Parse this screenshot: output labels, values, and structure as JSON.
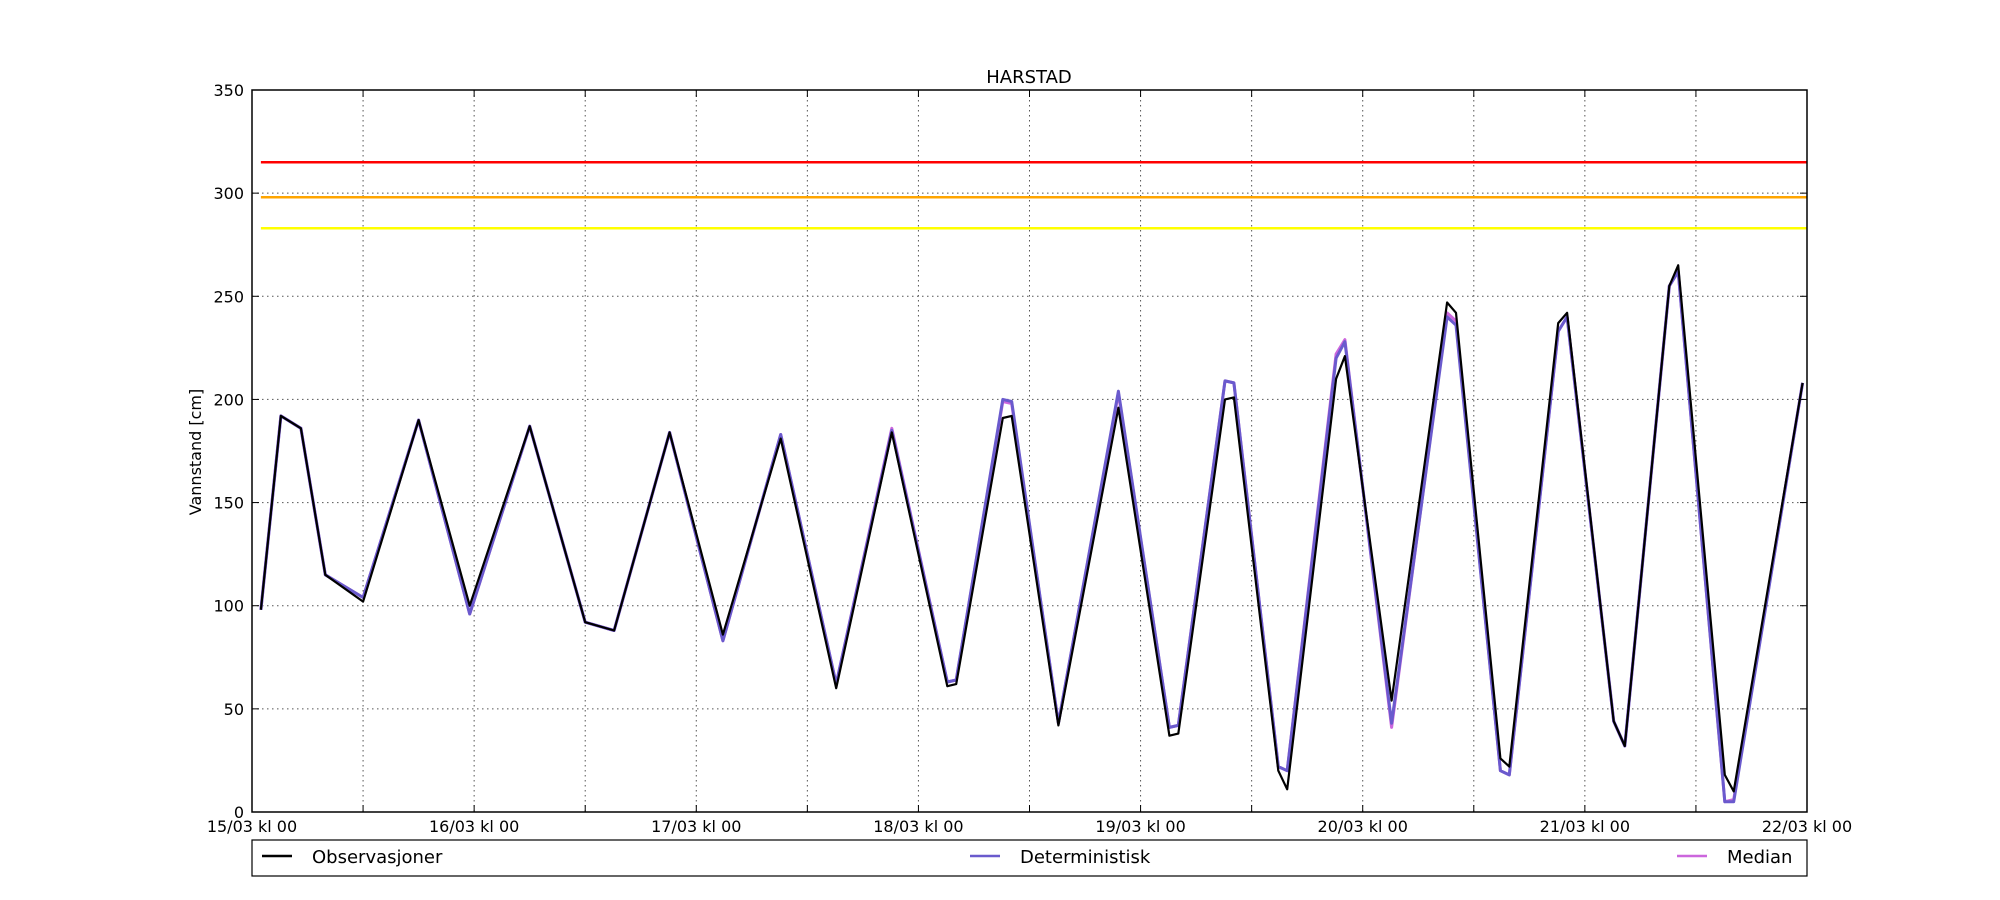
{
  "chart_data": {
    "type": "line",
    "title": "HARSTAD",
    "xlabel": "",
    "ylabel": "Vannstand [cm]",
    "ylim": [
      0,
      350
    ],
    "yticks": [
      0,
      50,
      100,
      150,
      200,
      250,
      300,
      350
    ],
    "xlim": [
      0,
      7
    ],
    "x_unit": "days since 15/03 kl 00",
    "xticks": [
      {
        "x": 0,
        "label": "15/03 kl 00"
      },
      {
        "x": 0.5,
        "label": ""
      },
      {
        "x": 1,
        "label": "16/03 kl 00"
      },
      {
        "x": 1.5,
        "label": ""
      },
      {
        "x": 2,
        "label": "17/03 kl 00"
      },
      {
        "x": 2.5,
        "label": ""
      },
      {
        "x": 3,
        "label": "18/03 kl 00"
      },
      {
        "x": 3.5,
        "label": ""
      },
      {
        "x": 4,
        "label": "19/03 kl 00"
      },
      {
        "x": 4.5,
        "label": ""
      },
      {
        "x": 5,
        "label": "20/03 kl 00"
      },
      {
        "x": 5.5,
        "label": ""
      },
      {
        "x": 6,
        "label": "21/03 kl 00"
      },
      {
        "x": 6.5,
        "label": ""
      },
      {
        "x": 7,
        "label": "22/03 kl 00"
      }
    ],
    "grid": true,
    "legend_position": "bottom",
    "thresholds": [
      {
        "value": 315,
        "color": "#ff0000"
      },
      {
        "value": 298,
        "color": "#ffa500"
      },
      {
        "value": 283,
        "color": "#ffff00"
      }
    ],
    "series": [
      {
        "name": "Observasjoner",
        "color": "#000000",
        "points": [
          [
            0.04,
            98
          ],
          [
            0.13,
            192
          ],
          [
            0.22,
            186
          ],
          [
            0.33,
            115
          ],
          [
            0.5,
            102
          ],
          [
            0.75,
            190
          ],
          [
            0.98,
            100
          ],
          [
            1.25,
            187
          ],
          [
            1.5,
            92
          ],
          [
            1.63,
            88
          ],
          [
            1.88,
            184
          ],
          [
            2.12,
            86
          ],
          [
            2.38,
            181
          ],
          [
            2.63,
            60
          ],
          [
            2.88,
            184
          ],
          [
            3.13,
            61
          ],
          [
            3.17,
            62
          ],
          [
            3.38,
            191
          ],
          [
            3.42,
            192
          ],
          [
            3.63,
            42
          ],
          [
            3.9,
            196
          ],
          [
            4.13,
            37
          ],
          [
            4.17,
            38
          ],
          [
            4.38,
            200
          ],
          [
            4.42,
            201
          ],
          [
            4.62,
            20
          ],
          [
            4.66,
            11
          ],
          [
            4.88,
            210
          ],
          [
            4.92,
            221
          ],
          [
            5.13,
            54
          ],
          [
            5.38,
            247
          ],
          [
            5.42,
            242
          ],
          [
            5.62,
            26
          ],
          [
            5.66,
            22
          ],
          [
            5.88,
            237
          ],
          [
            5.92,
            242
          ],
          [
            6.13,
            44
          ],
          [
            6.18,
            32
          ],
          [
            6.38,
            255
          ],
          [
            6.42,
            265
          ],
          [
            6.63,
            18
          ],
          [
            6.67,
            10
          ],
          [
            6.98,
            208
          ]
        ]
      },
      {
        "name": "Deterministisk",
        "color": "#6a5acd",
        "points": [
          [
            0.04,
            98
          ],
          [
            0.13,
            192
          ],
          [
            0.22,
            186
          ],
          [
            0.33,
            115
          ],
          [
            0.5,
            104
          ],
          [
            0.75,
            190
          ],
          [
            0.98,
            96
          ],
          [
            1.25,
            187
          ],
          [
            1.5,
            92
          ],
          [
            1.63,
            88
          ],
          [
            1.88,
            184
          ],
          [
            2.12,
            83
          ],
          [
            2.38,
            183
          ],
          [
            2.63,
            62
          ],
          [
            2.88,
            185
          ],
          [
            3.13,
            63
          ],
          [
            3.17,
            64
          ],
          [
            3.38,
            200
          ],
          [
            3.42,
            199
          ],
          [
            3.63,
            43
          ],
          [
            3.9,
            204
          ],
          [
            4.13,
            41
          ],
          [
            4.17,
            42
          ],
          [
            4.38,
            209
          ],
          [
            4.42,
            208
          ],
          [
            4.62,
            22
          ],
          [
            4.66,
            20
          ],
          [
            4.88,
            220
          ],
          [
            4.92,
            228
          ],
          [
            5.13,
            43
          ],
          [
            5.38,
            240
          ],
          [
            5.42,
            236
          ],
          [
            5.62,
            20
          ],
          [
            5.66,
            18
          ],
          [
            5.88,
            233
          ],
          [
            5.92,
            240
          ],
          [
            6.13,
            44
          ],
          [
            6.18,
            32
          ],
          [
            6.38,
            255
          ],
          [
            6.42,
            262
          ],
          [
            6.63,
            5
          ],
          [
            6.67,
            5
          ],
          [
            6.98,
            208
          ]
        ]
      },
      {
        "name": "Median",
        "color": "#cc66dd",
        "points": [
          [
            0.04,
            98
          ],
          [
            0.13,
            192
          ],
          [
            0.22,
            186
          ],
          [
            0.33,
            115
          ],
          [
            0.5,
            104
          ],
          [
            0.75,
            190
          ],
          [
            0.98,
            96
          ],
          [
            1.25,
            187
          ],
          [
            1.5,
            92
          ],
          [
            1.63,
            88
          ],
          [
            1.88,
            184
          ],
          [
            2.12,
            83
          ],
          [
            2.38,
            183
          ],
          [
            2.63,
            62
          ],
          [
            2.88,
            186
          ],
          [
            3.13,
            63
          ],
          [
            3.17,
            64
          ],
          [
            3.38,
            199
          ],
          [
            3.42,
            198
          ],
          [
            3.63,
            43
          ],
          [
            3.9,
            203
          ],
          [
            4.13,
            41
          ],
          [
            4.17,
            42
          ],
          [
            4.38,
            209
          ],
          [
            4.42,
            208
          ],
          [
            4.62,
            22
          ],
          [
            4.66,
            20
          ],
          [
            4.88,
            222
          ],
          [
            4.92,
            229
          ],
          [
            5.13,
            41
          ],
          [
            5.38,
            242
          ],
          [
            5.42,
            238
          ],
          [
            5.62,
            20
          ],
          [
            5.66,
            18
          ],
          [
            5.88,
            233
          ],
          [
            5.92,
            240
          ],
          [
            6.13,
            44
          ],
          [
            6.18,
            32
          ],
          [
            6.38,
            255
          ],
          [
            6.42,
            262
          ],
          [
            6.63,
            5
          ],
          [
            6.67,
            6
          ],
          [
            6.98,
            208
          ]
        ]
      }
    ]
  }
}
